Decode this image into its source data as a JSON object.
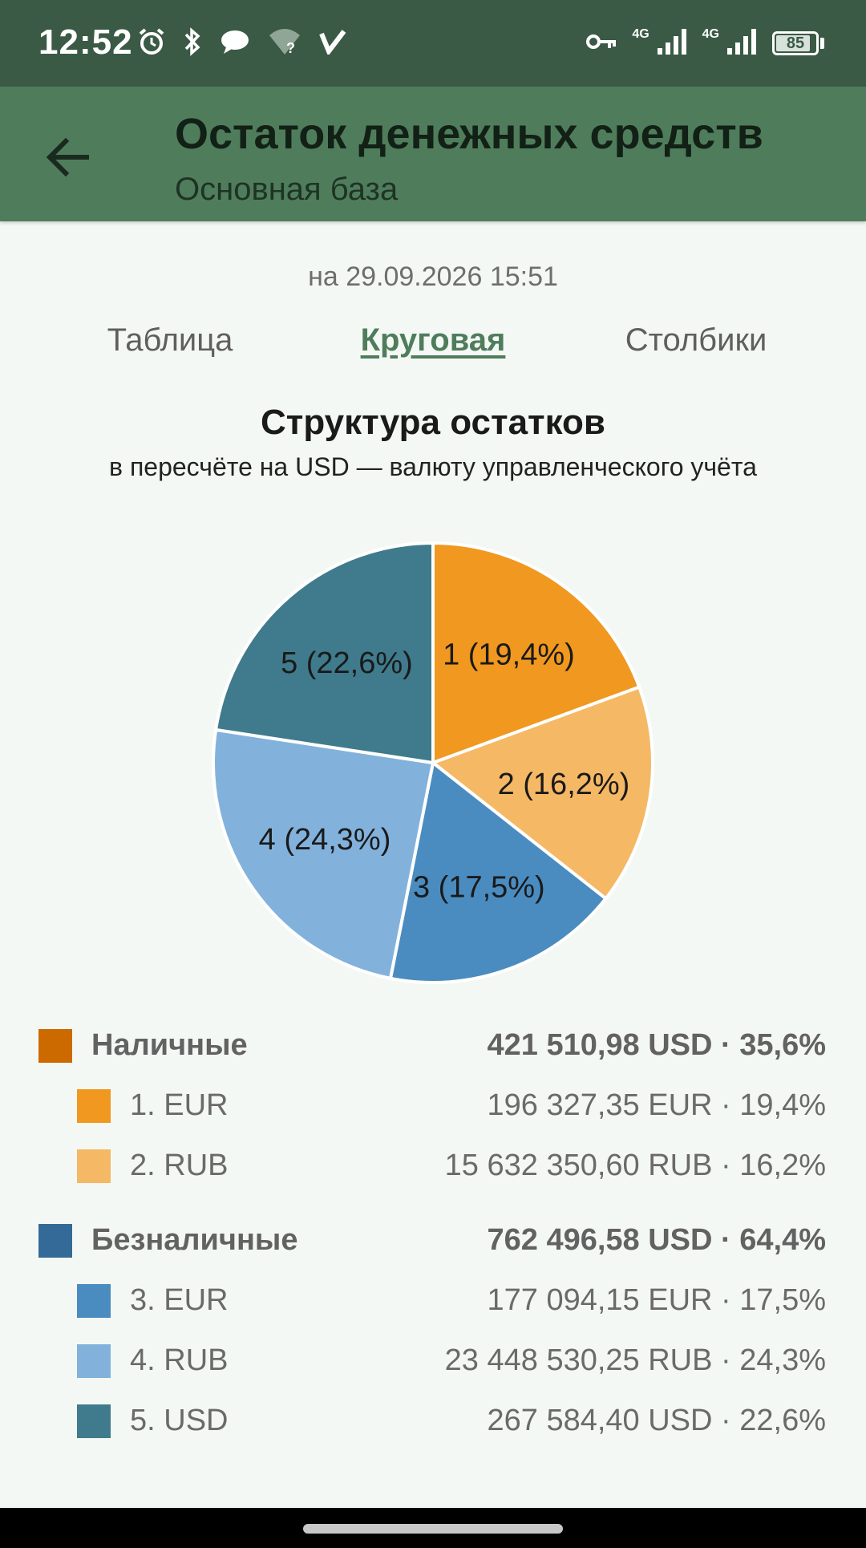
{
  "status_bar": {
    "time": "12:52",
    "left_icons": [
      "alarm-icon",
      "bluetooth-icon",
      "chat-icon",
      "wifi-question-icon",
      "v-logo-icon"
    ],
    "right_icons": [
      "vpn-key-icon",
      "signal-4g-icon",
      "signal-4g-icon"
    ],
    "network_1": "4G",
    "network_2": "4G",
    "battery": "85"
  },
  "app_bar": {
    "title": "Остаток денежных средств",
    "subtitle": "Основная база",
    "back_icon": "arrow-left-icon"
  },
  "as_of": "на 29.09.2026 15:51",
  "tabs": [
    {
      "label": "Таблица",
      "active": false
    },
    {
      "label": "Круговая",
      "active": true
    },
    {
      "label": "Столбики",
      "active": false
    }
  ],
  "chart_data": {
    "type": "pie",
    "title": "Структура остатков",
    "subtitle": "в пересчёте на USD — валюту управленческого учёта",
    "slices": [
      {
        "label": "1 (19,4%)",
        "value": 19.4,
        "color": "#f0981f"
      },
      {
        "label": "2 (16,2%)",
        "value": 16.2,
        "color": "#f5b865"
      },
      {
        "label": "3 (17,5%)",
        "value": 17.5,
        "color": "#4a8cc0"
      },
      {
        "label": "4 (24,3%)",
        "value": 24.3,
        "color": "#82b2dc"
      },
      {
        "label": "5 (22,6%)",
        "value": 22.6,
        "color": "#3f7b8c"
      }
    ],
    "start_angle_deg": 0,
    "direction": "clockwise"
  },
  "legend": [
    {
      "kind": "group",
      "label": "Наличные",
      "value": "421 510,98 USD · 35,6%",
      "color": "#cc6a00"
    },
    {
      "kind": "item",
      "label": "1. EUR",
      "value": "196 327,35 EUR · 19,4%",
      "color": "#f0981f"
    },
    {
      "kind": "item",
      "label": "2. RUB",
      "value": "15 632 350,60 RUB · 16,2%",
      "color": "#f5b865"
    },
    {
      "kind": "group",
      "label": "Безналичные",
      "value": "762 496,58 USD · 64,4%",
      "color": "#336a98"
    },
    {
      "kind": "item",
      "label": "3. EUR",
      "value": "177 094,15 EUR · 17,5%",
      "color": "#4a8cc0"
    },
    {
      "kind": "item",
      "label": "4. RUB",
      "value": "23 448 530,25 RUB · 24,3%",
      "color": "#82b2dc"
    },
    {
      "kind": "item",
      "label": "5. USD",
      "value": "267 584,40 USD · 22,6%",
      "color": "#3f7b8c"
    }
  ]
}
